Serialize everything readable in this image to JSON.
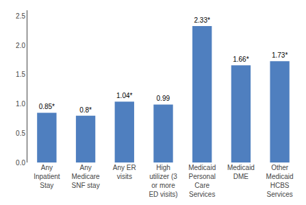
{
  "chart_data": {
    "type": "bar",
    "categories": [
      "Any\nInpatient\nStay",
      "Any\nMedicare\nSNF stay",
      "Any ER\nvisits",
      "High\nutilizer (3\nor more\nED visits)",
      "Medicaid\nPersonal\nCare\nServices",
      "Medicaid\nDME",
      "Other\nMedicaid\nHCBS\nServices"
    ],
    "values": [
      0.85,
      0.8,
      1.04,
      0.99,
      2.33,
      1.66,
      1.73
    ],
    "value_labels": [
      "0.85*",
      "0.8*",
      "1.04*",
      "0.99",
      "2.33*",
      "1.66*",
      "1.73*"
    ],
    "data_labels": true,
    "color": "#4f7fbf",
    "ylim": [
      0,
      2.6
    ],
    "yticks": [
      {
        "value": 0,
        "label": "0.0"
      },
      0.5,
      {
        "value": 1.0,
        "label": "1.0"
      },
      1.5,
      {
        "value": 2.0,
        "label": "2.0"
      },
      2.5
    ],
    "grid": false
  }
}
